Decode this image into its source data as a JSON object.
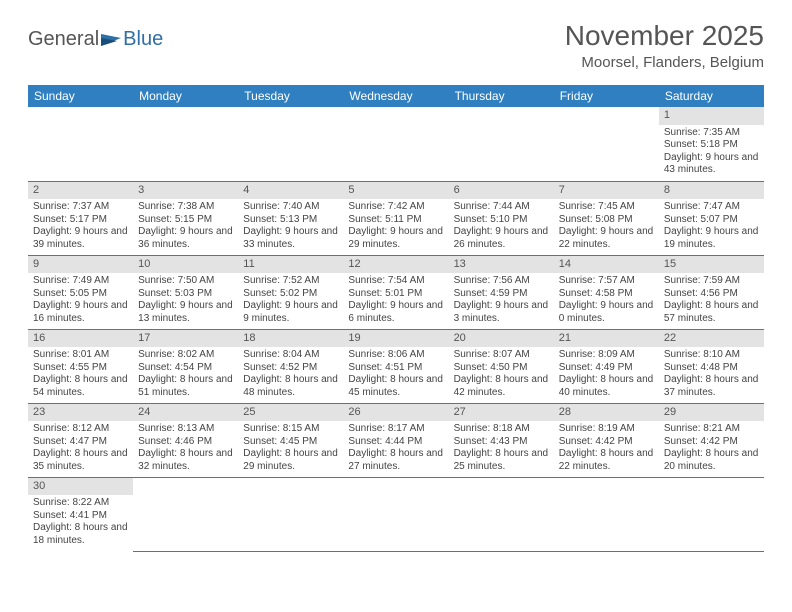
{
  "logo": {
    "text1": "General",
    "text2": "Blue"
  },
  "header": {
    "month_title": "November 2025",
    "location": "Moorsel, Flanders, Belgium"
  },
  "calendar": {
    "day_headers": [
      "Sunday",
      "Monday",
      "Tuesday",
      "Wednesday",
      "Thursday",
      "Friday",
      "Saturday"
    ],
    "header_bg": "#2f7fc1",
    "header_fg": "#ffffff",
    "daynum_bg": "#e3e3e3",
    "rule_color": "#2f7fc1",
    "weeks": [
      [
        null,
        null,
        null,
        null,
        null,
        null,
        {
          "n": "1",
          "sunrise": "Sunrise: 7:35 AM",
          "sunset": "Sunset: 5:18 PM",
          "daylight": "Daylight: 9 hours and 43 minutes."
        }
      ],
      [
        {
          "n": "2",
          "sunrise": "Sunrise: 7:37 AM",
          "sunset": "Sunset: 5:17 PM",
          "daylight": "Daylight: 9 hours and 39 minutes."
        },
        {
          "n": "3",
          "sunrise": "Sunrise: 7:38 AM",
          "sunset": "Sunset: 5:15 PM",
          "daylight": "Daylight: 9 hours and 36 minutes."
        },
        {
          "n": "4",
          "sunrise": "Sunrise: 7:40 AM",
          "sunset": "Sunset: 5:13 PM",
          "daylight": "Daylight: 9 hours and 33 minutes."
        },
        {
          "n": "5",
          "sunrise": "Sunrise: 7:42 AM",
          "sunset": "Sunset: 5:11 PM",
          "daylight": "Daylight: 9 hours and 29 minutes."
        },
        {
          "n": "6",
          "sunrise": "Sunrise: 7:44 AM",
          "sunset": "Sunset: 5:10 PM",
          "daylight": "Daylight: 9 hours and 26 minutes."
        },
        {
          "n": "7",
          "sunrise": "Sunrise: 7:45 AM",
          "sunset": "Sunset: 5:08 PM",
          "daylight": "Daylight: 9 hours and 22 minutes."
        },
        {
          "n": "8",
          "sunrise": "Sunrise: 7:47 AM",
          "sunset": "Sunset: 5:07 PM",
          "daylight": "Daylight: 9 hours and 19 minutes."
        }
      ],
      [
        {
          "n": "9",
          "sunrise": "Sunrise: 7:49 AM",
          "sunset": "Sunset: 5:05 PM",
          "daylight": "Daylight: 9 hours and 16 minutes."
        },
        {
          "n": "10",
          "sunrise": "Sunrise: 7:50 AM",
          "sunset": "Sunset: 5:03 PM",
          "daylight": "Daylight: 9 hours and 13 minutes."
        },
        {
          "n": "11",
          "sunrise": "Sunrise: 7:52 AM",
          "sunset": "Sunset: 5:02 PM",
          "daylight": "Daylight: 9 hours and 9 minutes."
        },
        {
          "n": "12",
          "sunrise": "Sunrise: 7:54 AM",
          "sunset": "Sunset: 5:01 PM",
          "daylight": "Daylight: 9 hours and 6 minutes."
        },
        {
          "n": "13",
          "sunrise": "Sunrise: 7:56 AM",
          "sunset": "Sunset: 4:59 PM",
          "daylight": "Daylight: 9 hours and 3 minutes."
        },
        {
          "n": "14",
          "sunrise": "Sunrise: 7:57 AM",
          "sunset": "Sunset: 4:58 PM",
          "daylight": "Daylight: 9 hours and 0 minutes."
        },
        {
          "n": "15",
          "sunrise": "Sunrise: 7:59 AM",
          "sunset": "Sunset: 4:56 PM",
          "daylight": "Daylight: 8 hours and 57 minutes."
        }
      ],
      [
        {
          "n": "16",
          "sunrise": "Sunrise: 8:01 AM",
          "sunset": "Sunset: 4:55 PM",
          "daylight": "Daylight: 8 hours and 54 minutes."
        },
        {
          "n": "17",
          "sunrise": "Sunrise: 8:02 AM",
          "sunset": "Sunset: 4:54 PM",
          "daylight": "Daylight: 8 hours and 51 minutes."
        },
        {
          "n": "18",
          "sunrise": "Sunrise: 8:04 AM",
          "sunset": "Sunset: 4:52 PM",
          "daylight": "Daylight: 8 hours and 48 minutes."
        },
        {
          "n": "19",
          "sunrise": "Sunrise: 8:06 AM",
          "sunset": "Sunset: 4:51 PM",
          "daylight": "Daylight: 8 hours and 45 minutes."
        },
        {
          "n": "20",
          "sunrise": "Sunrise: 8:07 AM",
          "sunset": "Sunset: 4:50 PM",
          "daylight": "Daylight: 8 hours and 42 minutes."
        },
        {
          "n": "21",
          "sunrise": "Sunrise: 8:09 AM",
          "sunset": "Sunset: 4:49 PM",
          "daylight": "Daylight: 8 hours and 40 minutes."
        },
        {
          "n": "22",
          "sunrise": "Sunrise: 8:10 AM",
          "sunset": "Sunset: 4:48 PM",
          "daylight": "Daylight: 8 hours and 37 minutes."
        }
      ],
      [
        {
          "n": "23",
          "sunrise": "Sunrise: 8:12 AM",
          "sunset": "Sunset: 4:47 PM",
          "daylight": "Daylight: 8 hours and 35 minutes."
        },
        {
          "n": "24",
          "sunrise": "Sunrise: 8:13 AM",
          "sunset": "Sunset: 4:46 PM",
          "daylight": "Daylight: 8 hours and 32 minutes."
        },
        {
          "n": "25",
          "sunrise": "Sunrise: 8:15 AM",
          "sunset": "Sunset: 4:45 PM",
          "daylight": "Daylight: 8 hours and 29 minutes."
        },
        {
          "n": "26",
          "sunrise": "Sunrise: 8:17 AM",
          "sunset": "Sunset: 4:44 PM",
          "daylight": "Daylight: 8 hours and 27 minutes."
        },
        {
          "n": "27",
          "sunrise": "Sunrise: 8:18 AM",
          "sunset": "Sunset: 4:43 PM",
          "daylight": "Daylight: 8 hours and 25 minutes."
        },
        {
          "n": "28",
          "sunrise": "Sunrise: 8:19 AM",
          "sunset": "Sunset: 4:42 PM",
          "daylight": "Daylight: 8 hours and 22 minutes."
        },
        {
          "n": "29",
          "sunrise": "Sunrise: 8:21 AM",
          "sunset": "Sunset: 4:42 PM",
          "daylight": "Daylight: 8 hours and 20 minutes."
        }
      ],
      [
        {
          "n": "30",
          "sunrise": "Sunrise: 8:22 AM",
          "sunset": "Sunset: 4:41 PM",
          "daylight": "Daylight: 8 hours and 18 minutes."
        },
        null,
        null,
        null,
        null,
        null,
        null
      ]
    ]
  }
}
